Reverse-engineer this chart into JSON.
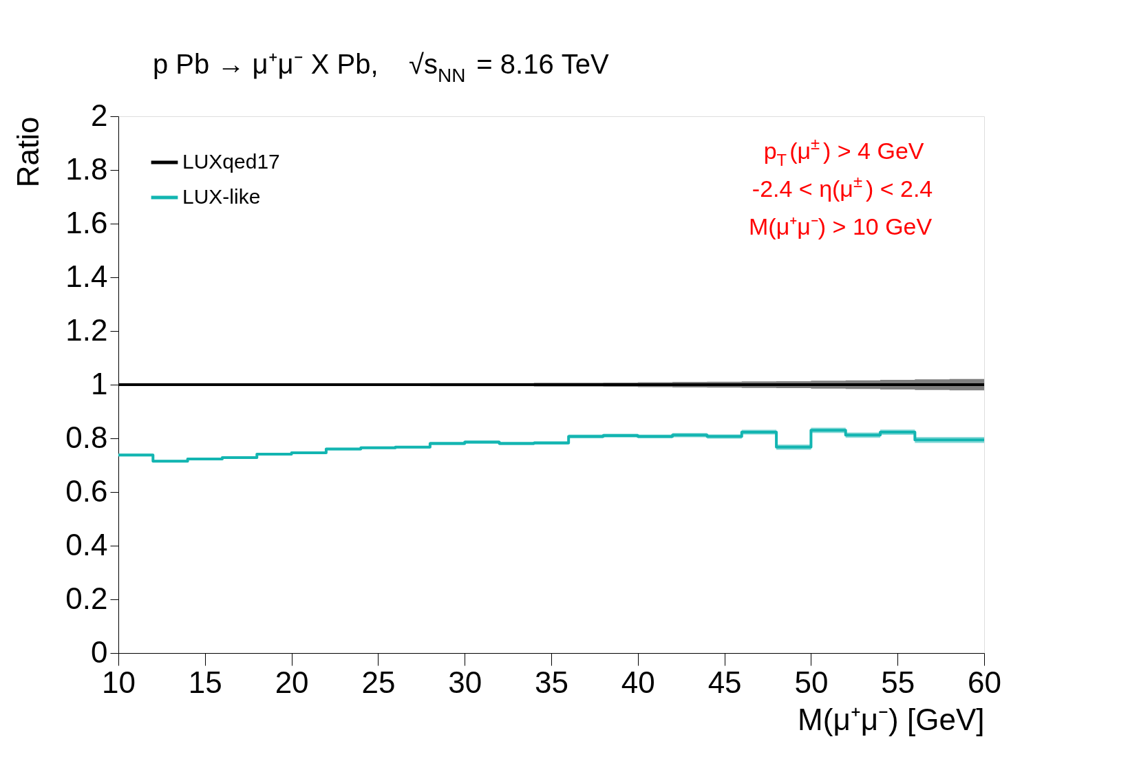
{
  "chart_data": {
    "type": "step",
    "title": "p Pb → μ⁺μ⁻ X Pb,    √s$_{NN}$ = 8.16 TeV",
    "xlabel": "M(μ⁺μ⁻) [GeV]",
    "ylabel": "Ratio",
    "x": [
      10,
      12,
      14,
      16,
      18,
      20,
      22,
      24,
      26,
      28,
      30,
      32,
      34,
      36,
      38,
      40,
      42,
      44,
      46,
      48,
      50,
      52,
      54,
      56,
      58
    ],
    "series": [
      {
        "name": "LUXqed17",
        "color": "#000000",
        "values": [
          1,
          1,
          1,
          1,
          1,
          1,
          1,
          1,
          1,
          1,
          1,
          1,
          1,
          1,
          1,
          1,
          1,
          1,
          1,
          1,
          1,
          1,
          1,
          1,
          1
        ],
        "lower": [
          0.996,
          0.996,
          0.996,
          0.996,
          0.996,
          0.996,
          0.995,
          0.995,
          0.995,
          0.994,
          0.994,
          0.994,
          0.993,
          0.993,
          0.992,
          0.991,
          0.99,
          0.989,
          0.988,
          0.987,
          0.985,
          0.984,
          0.982,
          0.98,
          0.979
        ],
        "upper": [
          1.004,
          1.004,
          1.004,
          1.004,
          1.004,
          1.004,
          1.005,
          1.005,
          1.005,
          1.006,
          1.006,
          1.006,
          1.007,
          1.007,
          1.008,
          1.009,
          1.01,
          1.011,
          1.012,
          1.013,
          1.015,
          1.016,
          1.018,
          1.02,
          1.021
        ]
      },
      {
        "name": "LUX-like",
        "color": "#13b5b1",
        "values": [
          0.738,
          0.715,
          0.723,
          0.728,
          0.741,
          0.746,
          0.76,
          0.765,
          0.767,
          0.781,
          0.786,
          0.781,
          0.783,
          0.807,
          0.81,
          0.807,
          0.812,
          0.807,
          0.823,
          0.767,
          0.83,
          0.812,
          0.823,
          0.794,
          0.794
        ],
        "lower": [
          0.733,
          0.71,
          0.718,
          0.723,
          0.736,
          0.741,
          0.755,
          0.76,
          0.762,
          0.775,
          0.78,
          0.775,
          0.777,
          0.8,
          0.803,
          0.8,
          0.804,
          0.799,
          0.814,
          0.757,
          0.82,
          0.802,
          0.813,
          0.783,
          0.783
        ],
        "upper": [
          0.743,
          0.72,
          0.728,
          0.733,
          0.746,
          0.751,
          0.765,
          0.77,
          0.772,
          0.787,
          0.792,
          0.787,
          0.789,
          0.814,
          0.817,
          0.814,
          0.82,
          0.815,
          0.832,
          0.777,
          0.84,
          0.822,
          0.833,
          0.805,
          0.805
        ]
      }
    ],
    "xlim": [
      10,
      60
    ],
    "ylim": [
      0,
      2
    ],
    "xticks": [
      10,
      15,
      20,
      25,
      30,
      35,
      40,
      45,
      50,
      55,
      60
    ],
    "yticks": [
      0,
      0.2,
      0.4,
      0.6,
      0.8,
      1,
      1.2,
      1.4,
      1.6,
      1.8,
      2
    ],
    "annotations": [
      "p$_{T}$(μ$^{±}$) > 4 GeV",
      "-2.4 < η(μ$^{±}$) < 2.4",
      "M(μ⁺μ⁻) > 10 GeV"
    ],
    "legend": "top left",
    "grid": false
  }
}
